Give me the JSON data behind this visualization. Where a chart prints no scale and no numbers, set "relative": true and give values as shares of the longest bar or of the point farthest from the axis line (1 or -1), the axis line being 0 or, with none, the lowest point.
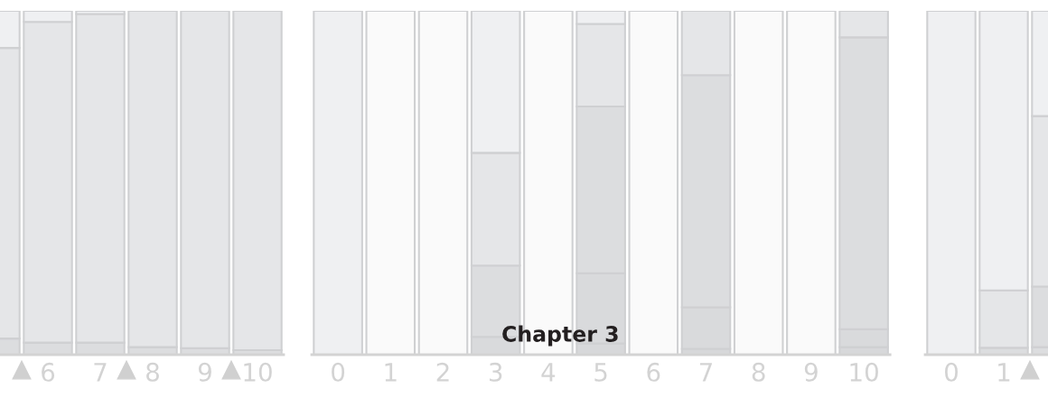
{
  "chart_data": [
    {
      "type": "bar",
      "stacked": true,
      "relative": true,
      "categories": [
        null,
        "6",
        "7",
        "8",
        "9",
        "10"
      ],
      "series": [
        {
          "values": [
            0.047,
            0.035,
            0.035,
            0.022,
            0.019,
            0.013
          ],
          "colors": [
            "#dcdddf",
            "#dcdddf",
            "#dcdddf",
            "#dcdddf",
            "#dcdddf",
            "#dcdddf"
          ]
        },
        {
          "values": [
            0.845,
            0.933,
            0.956,
            0.978,
            0.981,
            0.987
          ],
          "colors": [
            "#e5e6e8",
            "#e5e6e8",
            "#e5e6e8",
            "#e5e6e8",
            "#e5e6e8",
            "#e5e6e8"
          ]
        },
        {
          "values": [
            0.108,
            0.032,
            0.009,
            null,
            null,
            null
          ],
          "colors": [
            "#eff0f2",
            "#eff0f2",
            "#eff0f2",
            null,
            null,
            null
          ]
        }
      ]
    },
    {
      "type": "bar",
      "stacked": true,
      "relative": true,
      "title": "Chapter 3",
      "categories": [
        "0",
        "1",
        "2",
        "3",
        "4",
        "5",
        "6",
        "7",
        "8",
        "9",
        "10"
      ],
      "series": [
        {
          "values": [
            1,
            1,
            1,
            0.052,
            1,
            0.033,
            1,
            0.017,
            1,
            1,
            0.022
          ],
          "colors": [
            "#eff0f2",
            "#fafafa",
            "#fafafa",
            "#d9dadc",
            "#fafafa",
            "#d7d8da",
            "#fafafa",
            "#d7d8da",
            "#fafafa",
            "#fafafa",
            "#d7d8da"
          ]
        },
        {
          "values": [
            null,
            null,
            null,
            0.207,
            null,
            0.204,
            null,
            0.121,
            null,
            null,
            0.052
          ],
          "colors": [
            null,
            null,
            null,
            "#dcdddf",
            null,
            "#d9dadc",
            null,
            "#d9dadc",
            null,
            null,
            "#d9dadc"
          ]
        },
        {
          "values": [
            null,
            null,
            null,
            0.328,
            null,
            0.485,
            null,
            0.675,
            null,
            null,
            0.849
          ],
          "colors": [
            null,
            null,
            null,
            "#e5e6e8",
            null,
            "#dcdddf",
            null,
            "#dcdddf",
            null,
            null,
            "#dcdddf"
          ]
        },
        {
          "values": [
            null,
            null,
            null,
            0.413,
            null,
            0.24,
            null,
            0.187,
            null,
            null,
            0.077
          ],
          "colors": [
            null,
            null,
            null,
            "#eff0f2",
            null,
            "#e5e6e8",
            null,
            "#e5e6e8",
            null,
            null,
            "#e5e6e8"
          ]
        },
        {
          "values": [
            null,
            null,
            null,
            null,
            null,
            0.038,
            null,
            null,
            null,
            null,
            null
          ],
          "colors": [
            null,
            null,
            null,
            null,
            null,
            "#eff0f2",
            null,
            null,
            null,
            null,
            null
          ]
        }
      ]
    },
    {
      "type": "bar",
      "stacked": true,
      "relative": true,
      "categories": [
        "0",
        "1",
        null
      ],
      "series": [
        {
          "values": [
            1,
            0.02,
            0.022
          ],
          "colors": [
            "#eff0f2",
            "#dcdddf",
            "#dcdddf"
          ]
        },
        {
          "values": [
            null,
            0.167,
            0.176
          ],
          "colors": [
            null,
            "#e5e6e8",
            "#dcdddf"
          ]
        },
        {
          "values": [
            null,
            0.813,
            0.496
          ],
          "colors": [
            null,
            "#eff0f2",
            "#e5e6e8"
          ]
        },
        {
          "values": [
            null,
            null,
            0.306
          ],
          "colors": [
            null,
            null,
            "#eff0f2"
          ]
        }
      ]
    }
  ]
}
